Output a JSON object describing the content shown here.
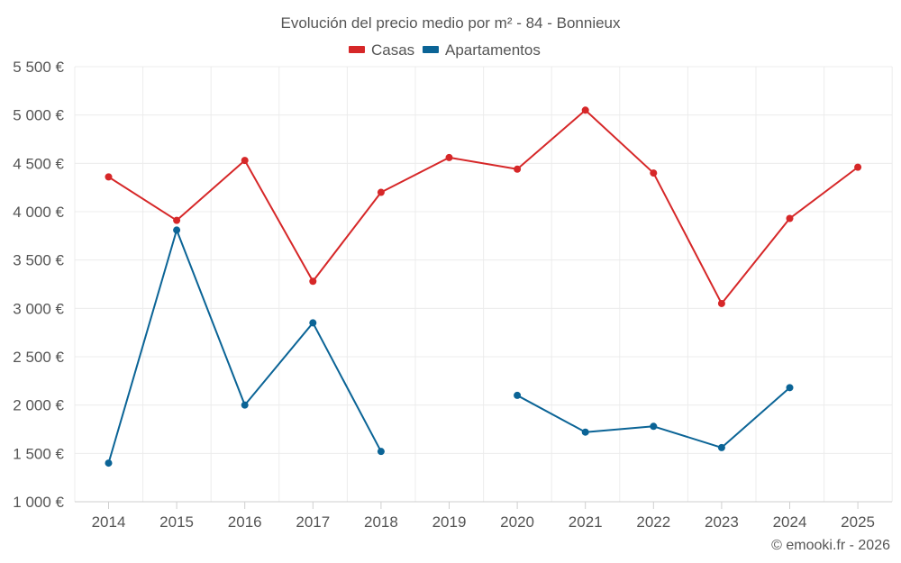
{
  "chart_data": {
    "type": "line",
    "title": "Evolución del precio medio por m² - 84 - Bonnieux",
    "categories": [
      "2014",
      "2015",
      "2016",
      "2017",
      "2018",
      "2019",
      "2020",
      "2021",
      "2022",
      "2023",
      "2024",
      "2025"
    ],
    "ylim": [
      1000,
      5500
    ],
    "yticks": [
      1000,
      1500,
      2000,
      2500,
      3000,
      3500,
      4000,
      4500,
      5000,
      5500
    ],
    "ytick_labels": [
      "1 000 €",
      "1 500 €",
      "2 000 €",
      "2 500 €",
      "3 000 €",
      "3 500 €",
      "4 000 €",
      "4 500 €",
      "5 000 €",
      "5 500 €"
    ],
    "grid": true,
    "legend_position": "top-center",
    "series": [
      {
        "name": "Casas",
        "color": "#d62728",
        "values": [
          4360,
          3910,
          4530,
          3280,
          4200,
          4560,
          4440,
          5050,
          4400,
          3050,
          3930,
          4460
        ]
      },
      {
        "name": "Apartamentos",
        "color": "#0b6496",
        "values": [
          1400,
          3810,
          2000,
          2850,
          1520,
          null,
          2100,
          1720,
          1780,
          1560,
          2180,
          null
        ]
      }
    ]
  },
  "credit": "© emooki.fr - 2026"
}
